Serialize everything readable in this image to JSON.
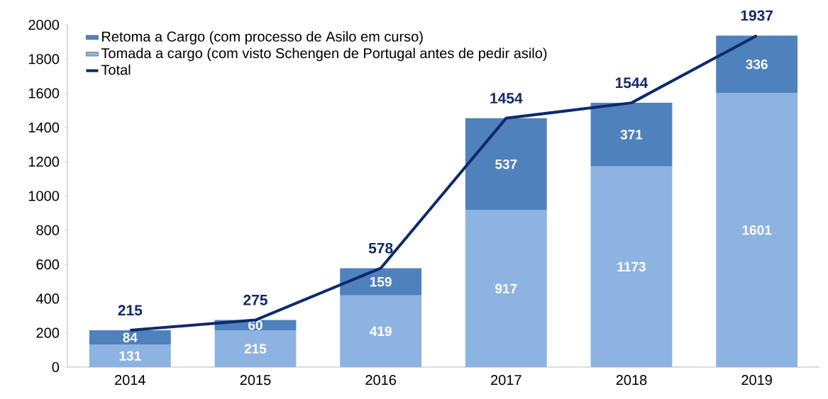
{
  "chart_data": {
    "type": "bar",
    "stacked": true,
    "categories": [
      "2014",
      "2015",
      "2016",
      "2017",
      "2018",
      "2019"
    ],
    "series": [
      {
        "name": "Tomada a cargo (com visto Schengen de Portugal antes de pedir asilo)",
        "color": "#8db3e2",
        "values": [
          131,
          215,
          419,
          917,
          1173,
          1601
        ]
      },
      {
        "name": "Retoma a Cargo (com processo de Asilo em curso)",
        "color": "#4f81bd",
        "values": [
          84,
          60,
          159,
          537,
          371,
          336
        ]
      },
      {
        "name": "Total",
        "type": "line",
        "color": "#0e2a6b",
        "values": [
          215,
          275,
          578,
          1454,
          1544,
          1937
        ]
      }
    ],
    "ylim": [
      0,
      2000
    ],
    "yticks": [
      0,
      200,
      400,
      600,
      800,
      1000,
      1200,
      1400,
      1600,
      1800,
      2000
    ],
    "data_labels": true,
    "legend": "top left",
    "grid": false,
    "marker": "none",
    "line_style": "solid"
  }
}
